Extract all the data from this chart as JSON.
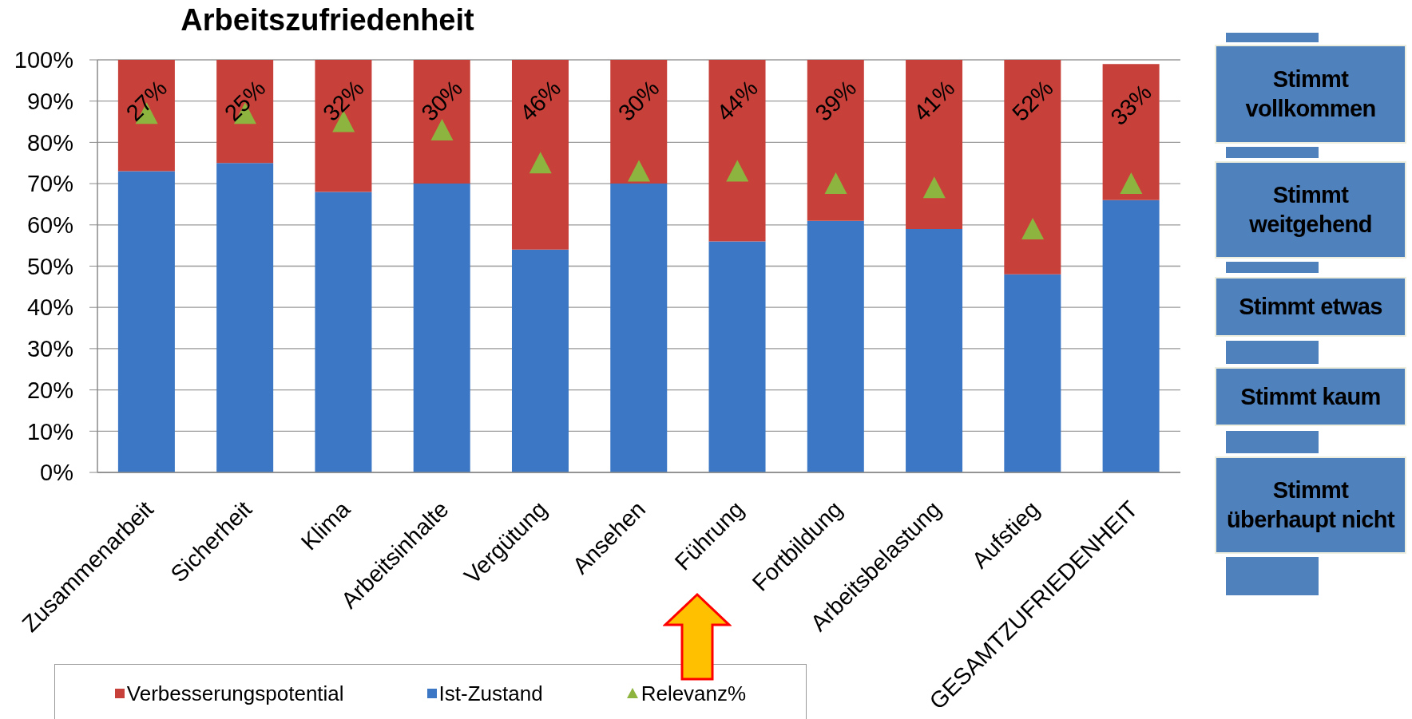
{
  "chart_data": {
    "type": "bar",
    "title": "Arbeitszufriedenheit",
    "categories": [
      "Zusammenarbeit",
      "Sicherheit",
      "Klima",
      "Arbeitsinhalte",
      "Vergütung",
      "Ansehen",
      "Führung",
      "Fortbildung",
      "Arbeitsbelastung",
      "Aufstieg",
      "GESAMTZUFRIEDENHEIT"
    ],
    "stacked": true,
    "series": [
      {
        "name": "Ist-Zustand",
        "color": "#3b77c4",
        "values": [
          73,
          75,
          68,
          70,
          54,
          70,
          56,
          61,
          59,
          48,
          66
        ]
      },
      {
        "name": "Verbesserungspotential",
        "color": "#c8403a",
        "values": [
          27,
          25,
          32,
          30,
          46,
          30,
          44,
          39,
          41,
          52,
          33
        ],
        "value_labels": [
          "27%",
          "25%",
          "32%",
          "30%",
          "46%",
          "30%",
          "44%",
          "39%",
          "41%",
          "52%",
          "33%"
        ]
      },
      {
        "name": "Relevanz%",
        "type": "scatter",
        "color": "#8db43e",
        "marker": "triangle",
        "x": [
          "Zusammenarbeit",
          "Sicherheit",
          "Klima",
          "Arbeitsinhalte",
          "Vergütung",
          "Ansehen",
          "Führung",
          "Fortbildung",
          "Arbeitsbelastung",
          "Aufstieg",
          "GESAMTZUFRIEDENHEIT"
        ],
        "values": [
          87,
          87,
          85,
          83,
          75,
          73,
          73,
          70,
          69,
          59,
          70
        ]
      }
    ],
    "ylim": [
      0,
      100
    ],
    "yticks": [
      {
        "value": 0,
        "label": "0%"
      },
      {
        "value": 10,
        "label": "10%"
      },
      {
        "value": 20,
        "label": "20%"
      },
      {
        "value": 30,
        "label": "30%"
      },
      {
        "value": 40,
        "label": "40%"
      },
      {
        "value": 50,
        "label": "50%"
      },
      {
        "value": 60,
        "label": "60%"
      },
      {
        "value": 70,
        "label": "70%"
      },
      {
        "value": 80,
        "label": "80%"
      },
      {
        "value": 90,
        "label": "90%"
      },
      {
        "value": 100,
        "label": "100%"
      }
    ],
    "grid": "y",
    "legend": "bottom",
    "annotations": [
      "Stimmt vollkommen",
      "Stimmt weitgehend",
      "Stimmt etwas",
      "Stimmt kaum",
      "Stimmt überhaupt nicht"
    ]
  }
}
